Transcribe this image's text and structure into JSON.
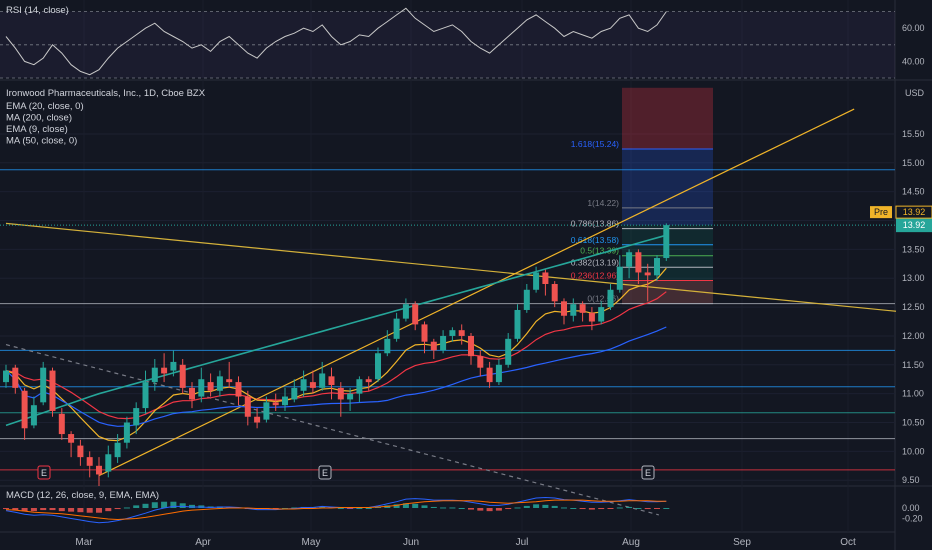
{
  "chart_data": [
    {
      "type": "candlestick",
      "title": "Ironwood Pharmaceuticals, Inc., 1D, Cboe BZX",
      "currency": "USD",
      "ylim": [
        9.4,
        16.4
      ],
      "yticks": [
        "15.50",
        "15.00",
        "14.50",
        "14.00",
        "13.50",
        "13.00",
        "12.50",
        "12.00",
        "11.50",
        "11.00",
        "10.50",
        "10.00",
        "9.50"
      ],
      "x_ticks": [
        "Mar",
        "Apr",
        "May",
        "Jun",
        "Jul",
        "Aug",
        "Sep",
        "Oct"
      ],
      "indicators": [
        "EMA (20, close, 0)",
        "MA (200, close)",
        "EMA (9, close)",
        "MA (50, close, 0)"
      ],
      "price_label": "13.92",
      "pre_label": "Pre",
      "pre_value": "13.92",
      "last_price": 13.92,
      "horizontal_levels": [
        14.88,
        12.56,
        11.75,
        11.12,
        10.67,
        10.22,
        9.68
      ],
      "fibonacci": {
        "labels": [
          "1.618(15.24)",
          "1(14.22)",
          "0.786(13.86)",
          "0.618(13.58)",
          "0.5(13.39)",
          "0.382(13.19)",
          "0.236(12.96)",
          "0(12.56)"
        ],
        "levels": [
          15.24,
          14.22,
          13.86,
          13.58,
          13.39,
          13.19,
          12.96,
          12.56
        ],
        "colors": [
          "#2962ff",
          "#787b86",
          "#b2b5be",
          "#2196f3",
          "#4caf50",
          "#b2b5be",
          "#f23645",
          "#787b86"
        ]
      },
      "position_box": {
        "top": 16.3,
        "entry": 13.92,
        "stop": 12.56
      },
      "earnings_markers": [
        "E",
        "E",
        "E"
      ],
      "trendlines": [
        {
          "name": "descending-resistance",
          "from": [
            0,
            13.95
          ],
          "to": [
            66,
            12.9
          ]
        },
        {
          "name": "ascending-support",
          "from": [
            10,
            9.58
          ],
          "to": [
            66,
            13.96
          ]
        },
        {
          "name": "dashed-downtrend",
          "from": [
            0,
            11.85
          ],
          "to": [
            54,
            9.58
          ]
        }
      ],
      "candles": [
        [
          11.2,
          11.4,
          11.5,
          11.1
        ],
        [
          11.45,
          11.1,
          11.5,
          11.0
        ],
        [
          11.05,
          10.4,
          11.1,
          10.2
        ],
        [
          10.45,
          10.8,
          10.95,
          10.4
        ],
        [
          10.85,
          11.45,
          11.55,
          10.8
        ],
        [
          11.4,
          10.7,
          11.45,
          10.6
        ],
        [
          10.65,
          10.3,
          10.75,
          10.2
        ],
        [
          10.3,
          10.15,
          10.35,
          9.9
        ],
        [
          10.1,
          9.9,
          10.2,
          9.75
        ],
        [
          9.9,
          9.75,
          10.0,
          9.55
        ],
        [
          9.75,
          9.6,
          9.9,
          9.4
        ],
        [
          9.65,
          9.95,
          10.1,
          9.55
        ],
        [
          9.9,
          10.15,
          10.3,
          9.8
        ],
        [
          10.15,
          10.5,
          10.6,
          10.05
        ],
        [
          10.45,
          10.75,
          10.85,
          10.3
        ],
        [
          10.75,
          11.2,
          11.4,
          10.65
        ],
        [
          11.2,
          11.45,
          11.6,
          11.05
        ],
        [
          11.45,
          11.35,
          11.7,
          11.2
        ],
        [
          11.4,
          11.55,
          11.75,
          11.3
        ],
        [
          11.5,
          11.1,
          11.6,
          11.0
        ],
        [
          11.1,
          10.9,
          11.2,
          10.75
        ],
        [
          10.95,
          11.25,
          11.45,
          10.85
        ],
        [
          11.2,
          11.05,
          11.35,
          10.95
        ],
        [
          11.05,
          11.3,
          11.4,
          10.95
        ],
        [
          11.25,
          11.2,
          11.55,
          11.1
        ],
        [
          11.2,
          10.95,
          11.3,
          10.8
        ],
        [
          10.95,
          10.6,
          11.05,
          10.45
        ],
        [
          10.6,
          10.5,
          10.75,
          10.4
        ],
        [
          10.55,
          10.85,
          10.95,
          10.5
        ],
        [
          10.85,
          10.8,
          11.0,
          10.7
        ],
        [
          10.8,
          10.95,
          11.1,
          10.7
        ],
        [
          10.9,
          11.1,
          11.25,
          10.85
        ],
        [
          11.05,
          11.25,
          11.4,
          10.95
        ],
        [
          11.2,
          11.1,
          11.4,
          11.0
        ],
        [
          11.1,
          11.35,
          11.55,
          11.05
        ],
        [
          11.3,
          11.15,
          11.45,
          10.9
        ],
        [
          11.1,
          10.9,
          11.2,
          10.6
        ],
        [
          10.9,
          11.0,
          11.1,
          10.7
        ],
        [
          11.0,
          11.25,
          11.3,
          10.85
        ],
        [
          11.25,
          11.2,
          11.3,
          11.05
        ],
        [
          11.25,
          11.7,
          11.8,
          11.2
        ],
        [
          11.7,
          11.95,
          12.1,
          11.65
        ],
        [
          11.95,
          12.3,
          12.4,
          11.9
        ],
        [
          12.3,
          12.55,
          12.65,
          12.25
        ],
        [
          12.55,
          12.2,
          12.6,
          12.1
        ],
        [
          12.2,
          11.9,
          12.25,
          11.7
        ],
        [
          11.9,
          11.75,
          11.95,
          11.6
        ],
        [
          11.75,
          12.0,
          12.1,
          11.7
        ],
        [
          12.0,
          12.1,
          12.15,
          11.9
        ],
        [
          12.1,
          12.0,
          12.2,
          11.85
        ],
        [
          12.0,
          11.65,
          12.05,
          11.5
        ],
        [
          11.65,
          11.45,
          11.75,
          11.3
        ],
        [
          11.45,
          11.2,
          11.55,
          11.1
        ],
        [
          11.2,
          11.5,
          11.6,
          11.15
        ],
        [
          11.5,
          11.95,
          12.05,
          11.45
        ],
        [
          11.95,
          12.45,
          12.55,
          11.9
        ],
        [
          12.45,
          12.8,
          12.9,
          12.4
        ],
        [
          12.8,
          13.1,
          13.2,
          12.75
        ],
        [
          13.1,
          12.9,
          13.15,
          12.7
        ],
        [
          12.9,
          12.6,
          12.95,
          12.5
        ],
        [
          12.6,
          12.35,
          12.65,
          12.2
        ],
        [
          12.35,
          12.55,
          12.65,
          12.25
        ],
        [
          12.55,
          12.4,
          12.6,
          12.25
        ],
        [
          12.4,
          12.25,
          12.5,
          12.1
        ],
        [
          12.25,
          12.5,
          12.6,
          12.2
        ],
        [
          12.5,
          12.8,
          12.9,
          12.45
        ],
        [
          12.8,
          13.2,
          13.4,
          12.75
        ],
        [
          13.2,
          13.45,
          13.5,
          13.0
        ],
        [
          13.45,
          13.1,
          13.5,
          12.9
        ],
        [
          13.1,
          13.05,
          13.25,
          12.6
        ],
        [
          13.05,
          13.35,
          13.4,
          12.95
        ],
        [
          13.35,
          13.92,
          13.95,
          13.3
        ]
      ]
    },
    {
      "type": "line",
      "title": "RSI (14, close)",
      "ylim": [
        30,
        77
      ],
      "yticks": [
        "60.00",
        "40.00"
      ],
      "series": [
        {
          "name": "RSI",
          "values": [
            55,
            48,
            40,
            38,
            42,
            50,
            45,
            38,
            34,
            32,
            35,
            42,
            48,
            52,
            56,
            60,
            63,
            58,
            55,
            52,
            48,
            50,
            46,
            52,
            55,
            50,
            45,
            42,
            48,
            52,
            55,
            57,
            60,
            58,
            62,
            55,
            50,
            52,
            56,
            55,
            60,
            64,
            68,
            72,
            66,
            62,
            58,
            60,
            62,
            58,
            52,
            48,
            45,
            50,
            55,
            60,
            65,
            68,
            64,
            60,
            55,
            58,
            56,
            54,
            58,
            60,
            66,
            68,
            60,
            58,
            62,
            70
          ]
        }
      ]
    },
    {
      "type": "bar",
      "title": "MACD (12, 26, close, 9, EMA, EMA)",
      "ylim": [
        -0.42,
        0.42
      ],
      "yticks": [
        "0.00",
        "-0.20"
      ],
      "series": [
        {
          "name": "MACD",
          "values": [
            -0.05,
            -0.08,
            -0.12,
            -0.14,
            -0.13,
            -0.14,
            -0.17,
            -0.2,
            -0.23,
            -0.26,
            -0.28,
            -0.27,
            -0.24,
            -0.2,
            -0.15,
            -0.1,
            -0.04,
            0.0,
            0.03,
            0.03,
            0.02,
            0.02,
            0.01,
            0.02,
            0.02,
            0.01,
            -0.01,
            -0.03,
            -0.03,
            -0.03,
            -0.02,
            -0.01,
            0.01,
            0.01,
            0.03,
            0.02,
            0.01,
            0.0,
            0.01,
            0.01,
            0.04,
            0.08,
            0.12,
            0.17,
            0.18,
            0.17,
            0.15,
            0.15,
            0.15,
            0.14,
            0.11,
            0.08,
            0.05,
            0.05,
            0.07,
            0.11,
            0.15,
            0.19,
            0.2,
            0.19,
            0.16,
            0.15,
            0.13,
            0.11,
            0.11,
            0.12,
            0.14,
            0.16,
            0.14,
            0.12,
            0.12,
            0.13
          ]
        },
        {
          "name": "Signal",
          "values": [
            -0.03,
            -0.04,
            -0.06,
            -0.08,
            -0.09,
            -0.1,
            -0.11,
            -0.13,
            -0.15,
            -0.17,
            -0.19,
            -0.21,
            -0.22,
            -0.21,
            -0.2,
            -0.18,
            -0.15,
            -0.12,
            -0.09,
            -0.06,
            -0.04,
            -0.03,
            -0.02,
            -0.01,
            0.0,
            0.0,
            0.0,
            -0.01,
            -0.01,
            -0.02,
            -0.02,
            -0.02,
            -0.01,
            -0.01,
            0.0,
            0.0,
            0.01,
            0.01,
            0.01,
            0.01,
            0.02,
            0.03,
            0.05,
            0.08,
            0.1,
            0.12,
            0.13,
            0.14,
            0.14,
            0.14,
            0.14,
            0.13,
            0.11,
            0.1,
            0.09,
            0.1,
            0.11,
            0.12,
            0.14,
            0.15,
            0.15,
            0.15,
            0.15,
            0.14,
            0.13,
            0.13,
            0.13,
            0.14,
            0.14,
            0.14,
            0.13,
            0.13
          ]
        }
      ]
    }
  ]
}
